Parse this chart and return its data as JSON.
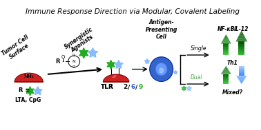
{
  "title": "Immune Response Direction via Modular, Covalent Labeling",
  "title_fontsize": 7.5,
  "bg_color": "#ffffff",
  "label_tumor": "Tumor Cell\nSurface",
  "label_synergistic": "Synergistic\nAgonists",
  "label_antigen": "Antigen-\nPresenting\nCell",
  "label_R": "R =",
  "label_LTA_CpG": "LTA, CpG",
  "label_TLR": "TLR",
  "label_TLR_nums": "2/6/9",
  "label_single": "Single",
  "label_dual": "Dual",
  "label_nfkb": "NF-κB",
  "label_il12": "IL-12",
  "label_th1": "Th1",
  "label_mixed": "Mixed?",
  "green_color": "#22aa22",
  "blue_color": "#5599ee",
  "dark_green": "#006600",
  "light_blue": "#88bbff",
  "red_color": "#cc2222",
  "dark_red": "#8b0000",
  "tlr2_color": "#000000",
  "tlr6_color": "#2255cc",
  "tlr9_color": "#22aa22"
}
